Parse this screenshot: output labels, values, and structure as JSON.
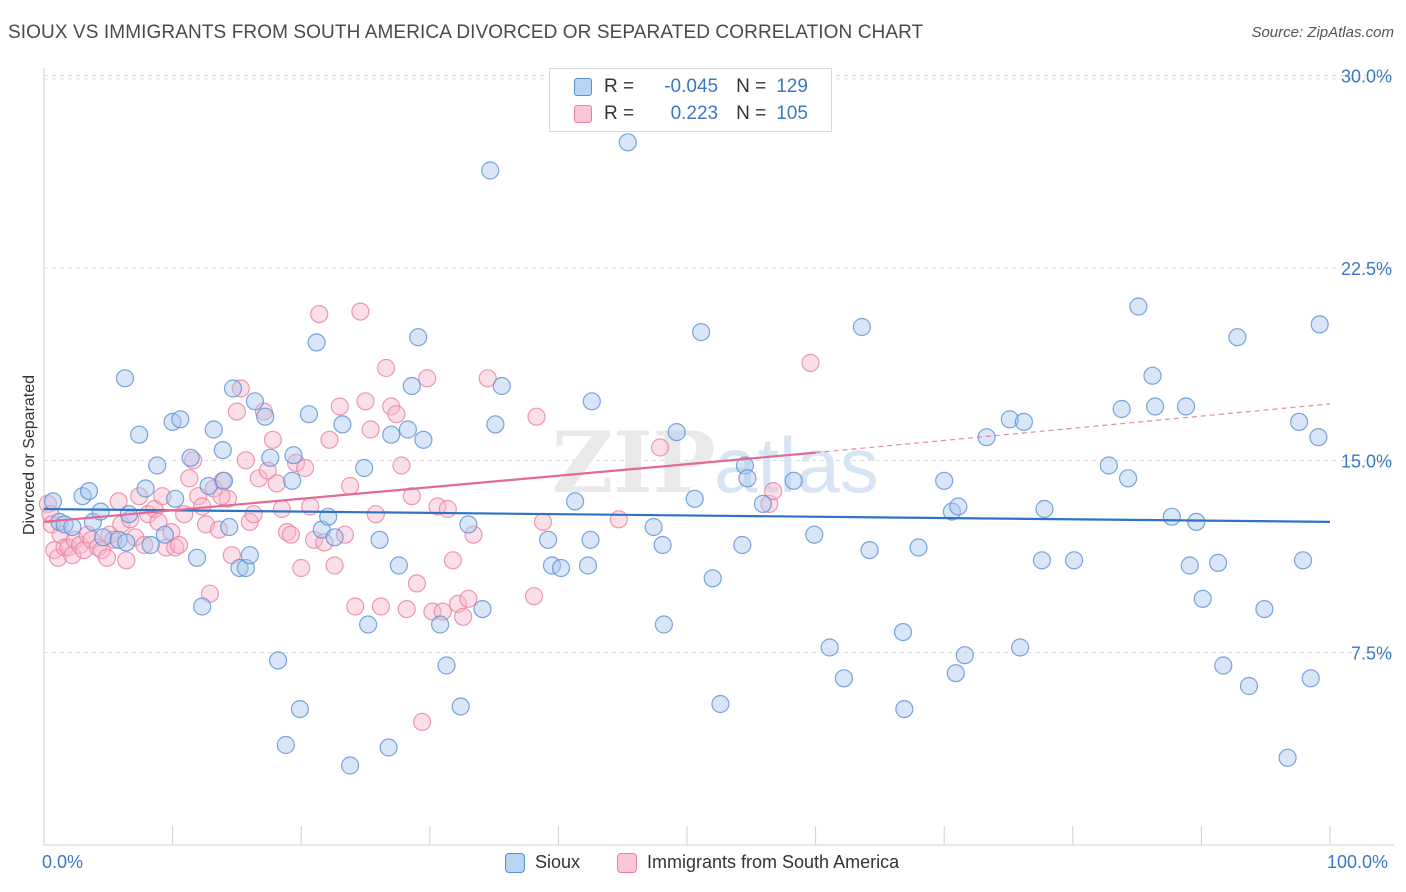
{
  "header": {
    "title": "SIOUX VS IMMIGRANTS FROM SOUTH AMERICA DIVORCED OR SEPARATED CORRELATION CHART",
    "source": "Source: ZipAtlas.com"
  },
  "watermark": {
    "text_zip": "ZIP",
    "text_atlas": "atlas"
  },
  "legend": {
    "rows": [
      {
        "r_label": "R =",
        "r_value": "-0.045",
        "n_label": "N =",
        "n_value": "129"
      },
      {
        "r_label": "R =",
        "r_value": "0.223",
        "n_label": "N =",
        "n_value": "105"
      }
    ]
  },
  "bottom_legend": {
    "sioux": "Sioux",
    "immigrants": "Immigrants from South America"
  },
  "colors": {
    "sioux_fill": "#a9c8ee",
    "sioux_stroke": "#5b8fd4",
    "sioux_line": "#2f73c9",
    "imm_fill": "#f7b8cb",
    "imm_stroke": "#e8819f",
    "imm_line": "#e26a94",
    "tick_text": "#3b78c4",
    "grid": "#dcdcdc"
  },
  "chart_data": {
    "type": "scatter",
    "ylabel": "Divorced or Separated",
    "xlim": [
      0,
      100
    ],
    "ylim": [
      0,
      31
    ],
    "x_tick_labels": [
      "0.0%",
      "100.0%"
    ],
    "y_ticks": [
      7.5,
      15.0,
      22.5,
      30.0
    ],
    "y_tick_labels": [
      "7.5%",
      "15.0%",
      "22.5%",
      "30.0%"
    ],
    "grid": "horizontal dashed",
    "legend_position": "top-center",
    "series": [
      {
        "name": "Sioux",
        "R": -0.045,
        "N": 129,
        "trend": {
          "x": [
            0,
            100
          ],
          "y": [
            13.1,
            12.6
          ],
          "style": "solid"
        },
        "points": [
          [
            0.7,
            13.4
          ],
          [
            1.2,
            12.6
          ],
          [
            1.6,
            12.5
          ],
          [
            2.2,
            12.4
          ],
          [
            3.0,
            13.6
          ],
          [
            3.5,
            13.8
          ],
          [
            3.8,
            12.6
          ],
          [
            4.4,
            13.0
          ],
          [
            4.6,
            12.0
          ],
          [
            5.8,
            11.9
          ],
          [
            6.4,
            11.8
          ],
          [
            6.6,
            12.9
          ],
          [
            6.3,
            18.2
          ],
          [
            7.4,
            16.0
          ],
          [
            7.9,
            13.9
          ],
          [
            8.3,
            11.7
          ],
          [
            8.8,
            14.8
          ],
          [
            9.4,
            12.1
          ],
          [
            10.0,
            16.5
          ],
          [
            10.2,
            13.5
          ],
          [
            10.6,
            16.6
          ],
          [
            11.4,
            15.1
          ],
          [
            11.9,
            11.2
          ],
          [
            12.3,
            9.3
          ],
          [
            12.8,
            14.0
          ],
          [
            13.2,
            16.2
          ],
          [
            13.9,
            15.4
          ],
          [
            14.4,
            12.4
          ],
          [
            14.7,
            17.8
          ],
          [
            15.2,
            10.8
          ],
          [
            15.7,
            10.8
          ],
          [
            16.0,
            11.3
          ],
          [
            16.4,
            17.3
          ],
          [
            17.2,
            16.7
          ],
          [
            17.6,
            15.1
          ],
          [
            18.2,
            7.2
          ],
          [
            18.8,
            3.9
          ],
          [
            19.3,
            14.2
          ],
          [
            19.4,
            15.2
          ],
          [
            19.9,
            5.3
          ],
          [
            20.6,
            16.8
          ],
          [
            21.2,
            19.6
          ],
          [
            21.6,
            12.3
          ],
          [
            22.1,
            12.8
          ],
          [
            22.6,
            12.0
          ],
          [
            23.2,
            16.4
          ],
          [
            23.8,
            3.1
          ],
          [
            24.9,
            14.7
          ],
          [
            25.2,
            8.6
          ],
          [
            26.1,
            11.9
          ],
          [
            26.8,
            3.8
          ],
          [
            27.0,
            16.0
          ],
          [
            27.6,
            10.9
          ],
          [
            28.3,
            16.2
          ],
          [
            28.6,
            17.9
          ],
          [
            29.1,
            19.8
          ],
          [
            30.8,
            8.6
          ],
          [
            31.3,
            7.0
          ],
          [
            32.4,
            5.4
          ],
          [
            33.0,
            12.5
          ],
          [
            34.1,
            9.2
          ],
          [
            34.7,
            26.3
          ],
          [
            35.1,
            16.4
          ],
          [
            35.6,
            17.9
          ],
          [
            39.2,
            11.9
          ],
          [
            39.5,
            10.9
          ],
          [
            40.2,
            10.8
          ],
          [
            41.3,
            13.4
          ],
          [
            42.3,
            10.9
          ],
          [
            42.5,
            11.9
          ],
          [
            42.6,
            17.3
          ],
          [
            45.4,
            27.4
          ],
          [
            47.4,
            12.4
          ],
          [
            48.1,
            11.7
          ],
          [
            48.2,
            8.6
          ],
          [
            49.2,
            16.1
          ],
          [
            50.6,
            13.5
          ],
          [
            51.1,
            20.0
          ],
          [
            52.0,
            10.4
          ],
          [
            52.6,
            5.5
          ],
          [
            54.3,
            11.7
          ],
          [
            54.5,
            14.8
          ],
          [
            54.7,
            14.3
          ],
          [
            55.9,
            13.3
          ],
          [
            58.3,
            14.2
          ],
          [
            59.9,
            12.1
          ],
          [
            61.1,
            7.7
          ],
          [
            62.2,
            6.5
          ],
          [
            63.6,
            20.2
          ],
          [
            64.2,
            11.5
          ],
          [
            66.8,
            8.3
          ],
          [
            66.9,
            5.3
          ],
          [
            68.0,
            11.6
          ],
          [
            70.0,
            14.2
          ],
          [
            70.6,
            13.0
          ],
          [
            70.9,
            6.7
          ],
          [
            71.1,
            13.2
          ],
          [
            71.6,
            7.4
          ],
          [
            73.3,
            15.9
          ],
          [
            75.1,
            16.6
          ],
          [
            75.9,
            7.7
          ],
          [
            76.2,
            16.5
          ],
          [
            77.6,
            11.1
          ],
          [
            77.8,
            13.1
          ],
          [
            80.1,
            11.1
          ],
          [
            82.8,
            14.8
          ],
          [
            83.8,
            17.0
          ],
          [
            84.3,
            14.3
          ],
          [
            85.1,
            21.0
          ],
          [
            86.2,
            18.3
          ],
          [
            86.4,
            17.1
          ],
          [
            87.7,
            12.8
          ],
          [
            88.8,
            17.1
          ],
          [
            89.1,
            10.9
          ],
          [
            89.6,
            12.6
          ],
          [
            90.1,
            9.6
          ],
          [
            91.3,
            11.0
          ],
          [
            91.7,
            7.0
          ],
          [
            92.8,
            19.8
          ],
          [
            93.7,
            6.2
          ],
          [
            94.9,
            9.2
          ],
          [
            96.7,
            3.4
          ],
          [
            97.6,
            16.5
          ],
          [
            97.9,
            11.1
          ],
          [
            98.5,
            6.5
          ],
          [
            99.1,
            15.9
          ],
          [
            99.2,
            20.3
          ],
          [
            14.0,
            14.2
          ],
          [
            29.5,
            15.8
          ]
        ]
      },
      {
        "name": "Immigrants from South America",
        "R": 0.223,
        "N": 105,
        "trend": {
          "x": [
            0,
            60
          ],
          "y": [
            12.6,
            15.3
          ],
          "style": "solid",
          "extension_x": [
            60,
            100
          ],
          "extension_y": [
            15.3,
            17.2
          ],
          "extension_style": "dashed"
        },
        "points": [
          [
            0.3,
            13.3
          ],
          [
            0.5,
            12.9
          ],
          [
            0.6,
            12.5
          ],
          [
            0.8,
            11.5
          ],
          [
            1.1,
            11.2
          ],
          [
            1.3,
            12.1
          ],
          [
            1.6,
            11.6
          ],
          [
            1.9,
            11.6
          ],
          [
            2.2,
            11.3
          ],
          [
            2.4,
            11.9
          ],
          [
            2.8,
            11.7
          ],
          [
            3.1,
            11.5
          ],
          [
            3.4,
            12.1
          ],
          [
            3.7,
            11.9
          ],
          [
            4.2,
            11.6
          ],
          [
            4.5,
            11.5
          ],
          [
            4.9,
            11.2
          ],
          [
            5.1,
            12.1
          ],
          [
            5.4,
            11.9
          ],
          [
            5.8,
            13.4
          ],
          [
            6.0,
            12.5
          ],
          [
            6.4,
            11.1
          ],
          [
            6.7,
            12.7
          ],
          [
            7.1,
            12.0
          ],
          [
            7.4,
            13.6
          ],
          [
            7.8,
            11.7
          ],
          [
            8.1,
            12.9
          ],
          [
            8.6,
            13.1
          ],
          [
            8.9,
            12.6
          ],
          [
            9.2,
            13.6
          ],
          [
            9.5,
            11.6
          ],
          [
            9.9,
            12.2
          ],
          [
            10.2,
            11.6
          ],
          [
            10.5,
            11.7
          ],
          [
            10.9,
            12.9
          ],
          [
            11.3,
            14.3
          ],
          [
            11.6,
            15.0
          ],
          [
            12.0,
            13.6
          ],
          [
            12.3,
            13.2
          ],
          [
            12.6,
            12.5
          ],
          [
            12.9,
            9.8
          ],
          [
            13.2,
            13.9
          ],
          [
            13.6,
            12.3
          ],
          [
            13.9,
            14.2
          ],
          [
            14.3,
            13.5
          ],
          [
            14.6,
            11.3
          ],
          [
            15.0,
            16.9
          ],
          [
            15.3,
            17.8
          ],
          [
            15.7,
            15.0
          ],
          [
            16.0,
            12.6
          ],
          [
            16.3,
            12.9
          ],
          [
            16.7,
            14.3
          ],
          [
            17.1,
            16.9
          ],
          [
            17.4,
            14.6
          ],
          [
            17.8,
            15.8
          ],
          [
            18.1,
            14.1
          ],
          [
            18.5,
            13.1
          ],
          [
            18.9,
            12.2
          ],
          [
            19.2,
            12.1
          ],
          [
            19.6,
            14.9
          ],
          [
            20.0,
            10.8
          ],
          [
            20.3,
            14.7
          ],
          [
            20.7,
            13.2
          ],
          [
            21.0,
            11.9
          ],
          [
            21.4,
            20.7
          ],
          [
            21.8,
            11.8
          ],
          [
            22.2,
            15.8
          ],
          [
            22.6,
            10.9
          ],
          [
            23.0,
            17.1
          ],
          [
            23.4,
            12.1
          ],
          [
            23.8,
            14.0
          ],
          [
            24.2,
            9.3
          ],
          [
            24.6,
            20.8
          ],
          [
            25.0,
            17.3
          ],
          [
            25.4,
            16.2
          ],
          [
            25.8,
            12.9
          ],
          [
            26.2,
            9.3
          ],
          [
            26.6,
            18.6
          ],
          [
            27.0,
            17.1
          ],
          [
            27.4,
            16.8
          ],
          [
            27.8,
            14.8
          ],
          [
            28.2,
            9.2
          ],
          [
            28.6,
            13.6
          ],
          [
            29.0,
            10.2
          ],
          [
            29.4,
            4.8
          ],
          [
            29.8,
            18.2
          ],
          [
            30.2,
            9.1
          ],
          [
            30.6,
            13.2
          ],
          [
            31.0,
            9.1
          ],
          [
            31.4,
            13.1
          ],
          [
            31.8,
            11.1
          ],
          [
            32.2,
            9.4
          ],
          [
            32.6,
            8.9
          ],
          [
            33.0,
            9.6
          ],
          [
            33.4,
            12.1
          ],
          [
            34.5,
            18.2
          ],
          [
            38.1,
            9.7
          ],
          [
            38.3,
            16.7
          ],
          [
            38.8,
            12.6
          ],
          [
            44.7,
            12.7
          ],
          [
            47.9,
            15.5
          ],
          [
            56.4,
            13.3
          ],
          [
            56.7,
            13.8
          ],
          [
            59.6,
            18.8
          ],
          [
            13.8,
            13.6
          ]
        ]
      }
    ]
  }
}
